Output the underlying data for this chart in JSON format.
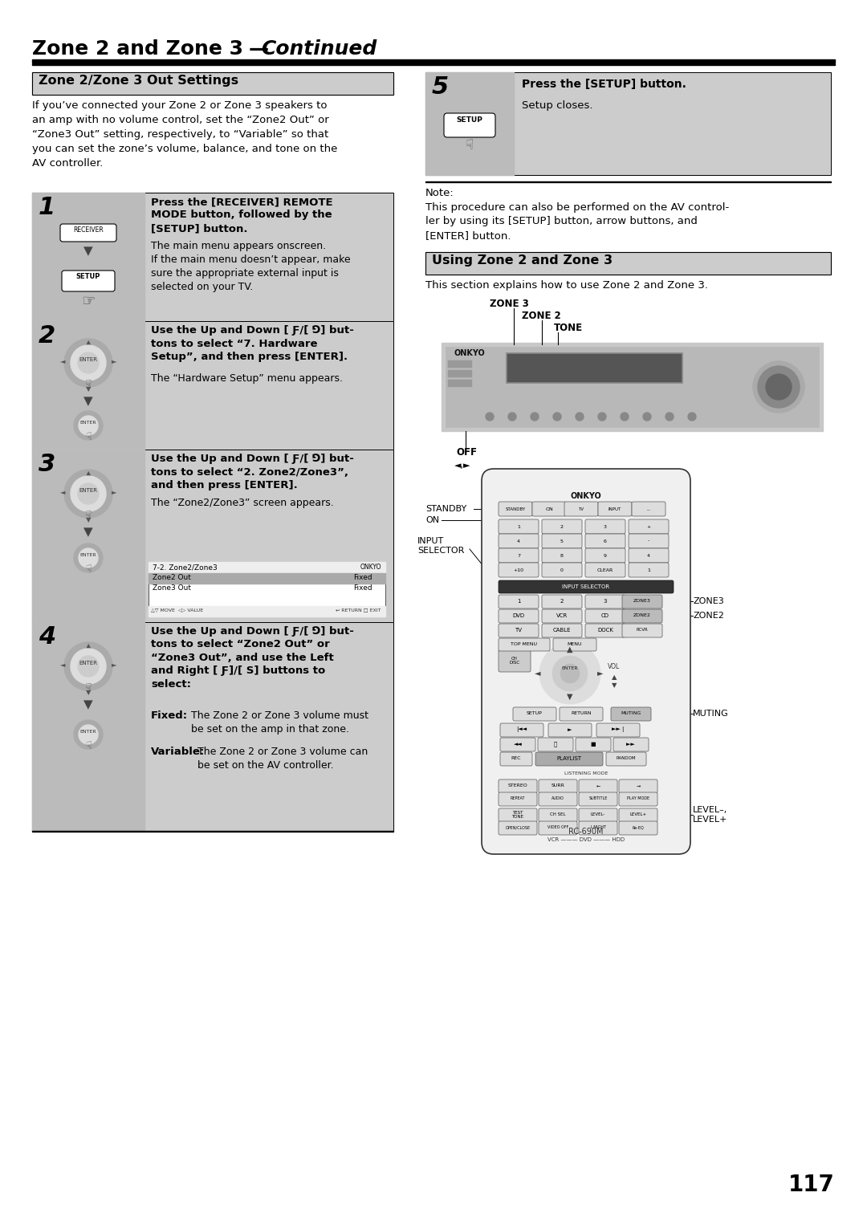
{
  "page_number": "117",
  "main_title_bold": "Zone 2 and Zone 3",
  "main_title_em": "Continued",
  "bg_color": "#ffffff",
  "section1_title": "Zone 2/Zone 3 Out Settings",
  "section1_bg": "#cccccc",
  "section2_title": "Using Zone 2 and Zone 3",
  "section2_bg": "#cccccc",
  "section1_body": "If you’ve connected your Zone 2 or Zone 3 speakers to\nan amp with no volume control, set the “Zone2 Out” or\n“Zone3 Out” setting, respectively, to “Variable” so that\nyou can set the zone’s volume, balance, and tone on the\nAV controller.",
  "section2_body": "This section explains how to use Zone 2 and Zone 3.",
  "step1_num": "1",
  "step1_title": "Press the [RECEIVER] REMOTE\nMODE button, followed by the\n[SETUP] button.",
  "step1_body": "The main menu appears onscreen.\nIf the main menu doesn’t appear, make\nsure the appropriate external input is\nselected on your TV.",
  "step2_num": "2",
  "step2_title": "Use the Up and Down [ Ƒ/[ ⅁] but-\ntons to select “7. Hardware\nSetup”, and then press [ENTER].",
  "step2_body": "The “Hardware Setup” menu appears.",
  "step3_num": "3",
  "step3_title": "Use the Up and Down [ Ƒ/[ ⅁] but-\ntons to select “2. Zone2/Zone3”,\nand then press [ENTER].",
  "step3_body": "The “Zone2/Zone3” screen appears.",
  "step4_num": "4",
  "step4_title": "Use the Up and Down [ Ƒ/[ ⅁] but-\ntons to select “Zone2 Out” or\n“Zone3 Out”, and use the Left\nand Right [ Ƒ]/[ S] buttons to\nselect:",
  "step4_fixed": "Fixed:",
  "step4_fixed_body": "The Zone 2 or Zone 3 volume must\nbe set on the amp in that zone.",
  "step4_variable": "Variable:",
  "step4_variable_body": "The Zone 2 or Zone 3 volume can\nbe set on the AV controller.",
  "step5_num": "5",
  "step5_title": "Press the [SETUP] button.",
  "step5_body": "Setup closes.",
  "note_title": "Note:",
  "note_body": "This procedure can also be performed on the AV control-\nler by using its [SETUP] button, arrow buttons, and\n[ENTER] button.",
  "step_bg": "#cccccc",
  "off_label": "OFF",
  "zone3_label": "ZONE 3",
  "zone2_label": "ZONE 2",
  "tone_label": "TONE",
  "standby_label": "STANDBY",
  "on_label": "ON",
  "input_selector_label": "INPUT\nSELECTOR",
  "zone3_btn_label": "ZONE3",
  "zone2_btn_label": "ZONE2",
  "muting_label": "MUTING",
  "level_label": "LEVEL–,\nLEVEL+",
  "rc_label": "RC-690M"
}
